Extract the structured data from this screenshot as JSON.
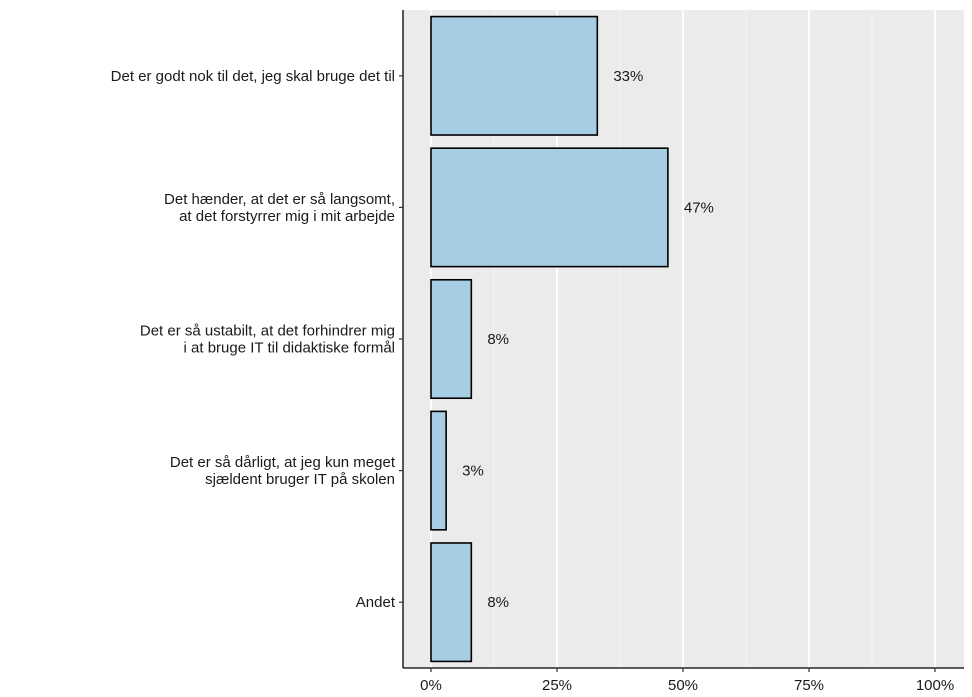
{
  "chart_data": {
    "type": "bar",
    "orientation": "horizontal",
    "title": "",
    "xlabel": "",
    "ylabel": "",
    "categories": [
      [
        "Det er godt nok til det, jeg skal bruge det til"
      ],
      [
        "Det hænder, at det er så langsomt,",
        "at det forstyrrer mig i mit arbejde"
      ],
      [
        "Det er så ustabilt, at det forhindrer mig",
        "i at bruge IT til didaktiske formål"
      ],
      [
        "Det er så dårligt, at jeg kun meget",
        "sjældent bruger IT på skolen"
      ],
      [
        "Andet"
      ]
    ],
    "values": [
      33,
      47,
      8,
      3,
      8
    ],
    "data_labels": [
      "33%",
      "47%",
      "8%",
      "3%",
      "8%"
    ],
    "xlim": [
      0,
      100
    ],
    "xticks": [
      0,
      25,
      50,
      75,
      100
    ],
    "xtick_labels": [
      "0%",
      "25%",
      "50%",
      "75%",
      "100%"
    ],
    "grid": true,
    "legend": "none",
    "colors": {
      "bar_fill": "#a6cde3",
      "bar_stroke": "#000000",
      "panel_bg": "#ebebeb",
      "grid_major": "#ffffff",
      "grid_minor": "#f5f5f5"
    }
  }
}
